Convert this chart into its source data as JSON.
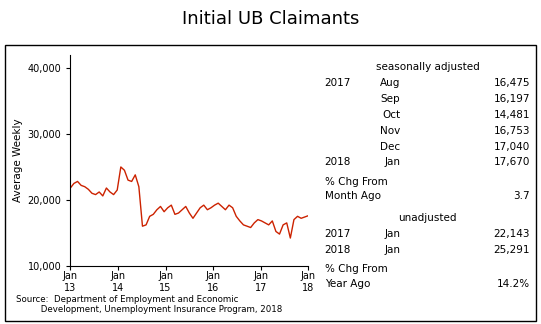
{
  "title": "Initial UB Claimants",
  "ylabel": "Average Weekly",
  "ylim": [
    10000,
    42000
  ],
  "yticks": [
    10000,
    20000,
    30000,
    40000
  ],
  "xtick_labels": [
    "Jan\n13",
    "Jan\n14",
    "Jan\n15",
    "Jan\n16",
    "Jan\n17",
    "Jan\n18"
  ],
  "line_color": "#cc2200",
  "line_width": 1.0,
  "source_text": "Source:  Department of Employment and Economic\n         Development, Unemployment Insurance Program, 2018",
  "seasonally_adjusted_label": "seasonally adjusted",
  "sa_data": [
    [
      "2017",
      "Aug",
      "16,475"
    ],
    [
      "",
      "Sep",
      "16,197"
    ],
    [
      "",
      "Oct",
      "14,481"
    ],
    [
      "",
      "Nov",
      "16,753"
    ],
    [
      "",
      "Dec",
      "17,040"
    ],
    [
      "2018",
      "Jan",
      "17,670"
    ]
  ],
  "unadjusted_label": "unadjusted",
  "ua_data": [
    [
      "2017",
      "Jan",
      "22,143"
    ],
    [
      "2018",
      "Jan",
      "25,291"
    ]
  ],
  "y_values": [
    21800,
    22500,
    22800,
    22200,
    22000,
    21600,
    21000,
    20800,
    21200,
    20600,
    21800,
    21200,
    20800,
    21500,
    25000,
    24500,
    23000,
    22800,
    23800,
    22000,
    16000,
    16200,
    17500,
    17800,
    18500,
    19000,
    18200,
    18800,
    19200,
    17800,
    18000,
    18500,
    19000,
    18000,
    17200,
    18000,
    18800,
    19200,
    18500,
    18800,
    19200,
    19500,
    19000,
    18500,
    19200,
    18800,
    17500,
    16800,
    16200,
    16000,
    15800,
    16500,
    17000,
    16800,
    16500,
    16200,
    16800,
    15200,
    14800,
    16200,
    16500,
    14200,
    17000,
    17500,
    17200,
    17400,
    17600
  ]
}
